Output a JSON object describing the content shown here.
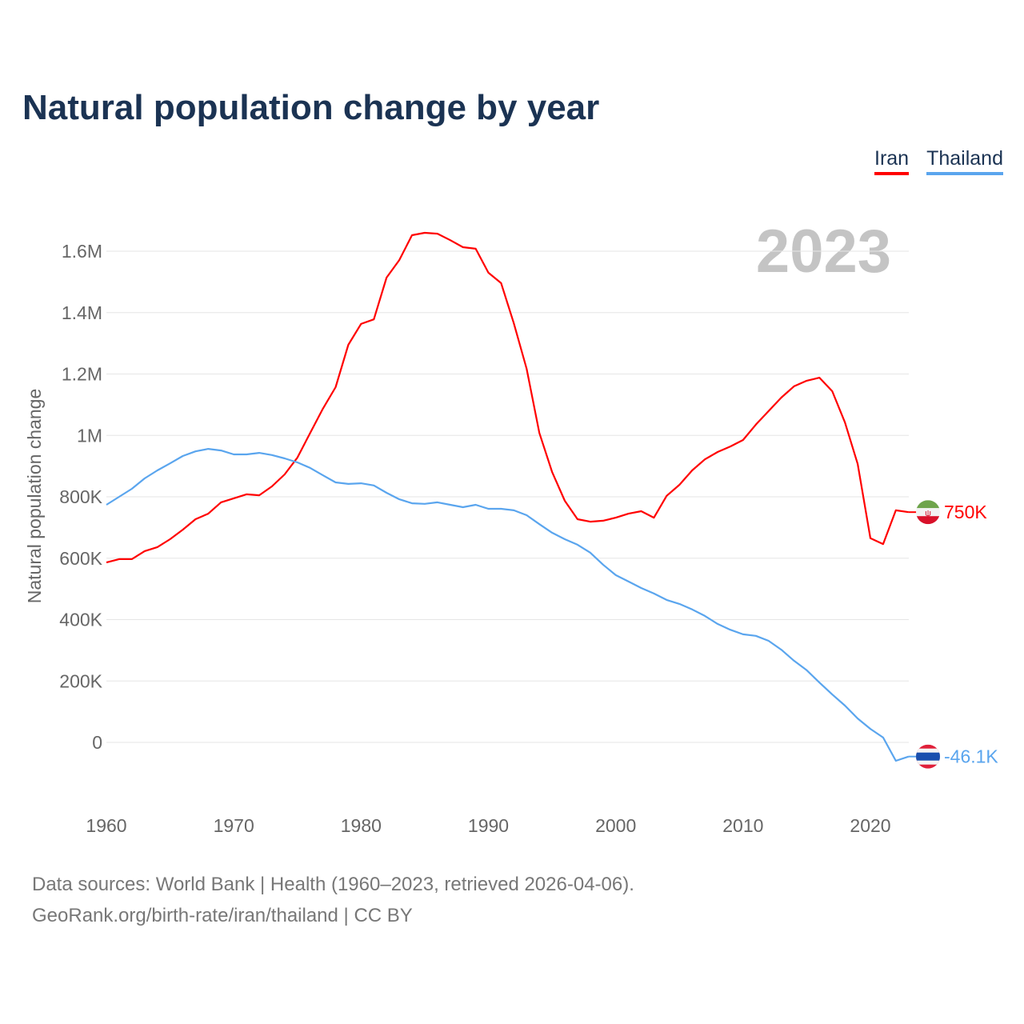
{
  "chart_data": {
    "type": "line",
    "title": "Natural population change by year",
    "ylabel": "Natural population change",
    "xlabel": "",
    "year_watermark": "2023",
    "xlim": [
      1960,
      2023
    ],
    "ylim": [
      -200000,
      1700000
    ],
    "x_ticks": [
      1960,
      1970,
      1980,
      1990,
      2000,
      2010,
      2020
    ],
    "x_tick_labels": [
      "1960",
      "1970",
      "1980",
      "1990",
      "2000",
      "2010",
      "2020"
    ],
    "y_ticks": [
      0,
      200000,
      400000,
      600000,
      800000,
      1000000,
      1200000,
      1400000,
      1600000
    ],
    "y_tick_labels": [
      "0",
      "200K",
      "400K",
      "600K",
      "800K",
      "1M",
      "1.2M",
      "1.4M",
      "1.6M"
    ],
    "grid": true,
    "legend_position": "top-right",
    "start_year": 1960,
    "series": [
      {
        "name": "Iran",
        "color": "#ff0000",
        "end_label": "750K",
        "flag_icon": "iran-flag-icon",
        "values": [
          586000,
          597000,
          597000,
          623000,
          636000,
          662000,
          693000,
          727000,
          745000,
          782000,
          795000,
          808000,
          805000,
          834000,
          873000,
          928000,
          1008000,
          1087000,
          1157000,
          1295000,
          1363000,
          1378000,
          1514000,
          1571000,
          1652000,
          1660000,
          1657000,
          1636000,
          1613000,
          1608000,
          1530000,
          1496000,
          1365000,
          1217000,
          1008000,
          881000,
          787000,
          727000,
          719000,
          722000,
          732000,
          745000,
          753000,
          732000,
          803000,
          839000,
          886000,
          922000,
          946000,
          964000,
          985000,
          1035000,
          1079000,
          1123000,
          1160000,
          1178000,
          1188000,
          1144000,
          1042000,
          907000,
          665000,
          646000,
          756000,
          750000
        ]
      },
      {
        "name": "Thailand",
        "color": "#5aa5ee",
        "end_label": "-46.1K",
        "flag_icon": "thailand-flag-icon",
        "values": [
          774000,
          800000,
          826000,
          860000,
          886000,
          909000,
          933000,
          948000,
          956000,
          951000,
          938000,
          938000,
          943000,
          936000,
          925000,
          912000,
          894000,
          870000,
          847000,
          842000,
          844000,
          837000,
          813000,
          792000,
          779000,
          777000,
          782000,
          774000,
          766000,
          774000,
          761000,
          761000,
          756000,
          740000,
          711000,
          683000,
          662000,
          644000,
          618000,
          579000,
          545000,
          524000,
          503000,
          485000,
          464000,
          451000,
          433000,
          412000,
          386000,
          367000,
          352000,
          347000,
          331000,
          302000,
          266000,
          235000,
          195000,
          156000,
          120000,
          78000,
          44000,
          16000,
          -60000,
          -46100
        ]
      }
    ]
  },
  "footer": {
    "line1": "Data sources: World Bank | Health (1960–2023, retrieved 2026-04-06).",
    "line2": "GeoRank.org/birth-rate/iran/thailand | CC BY"
  }
}
